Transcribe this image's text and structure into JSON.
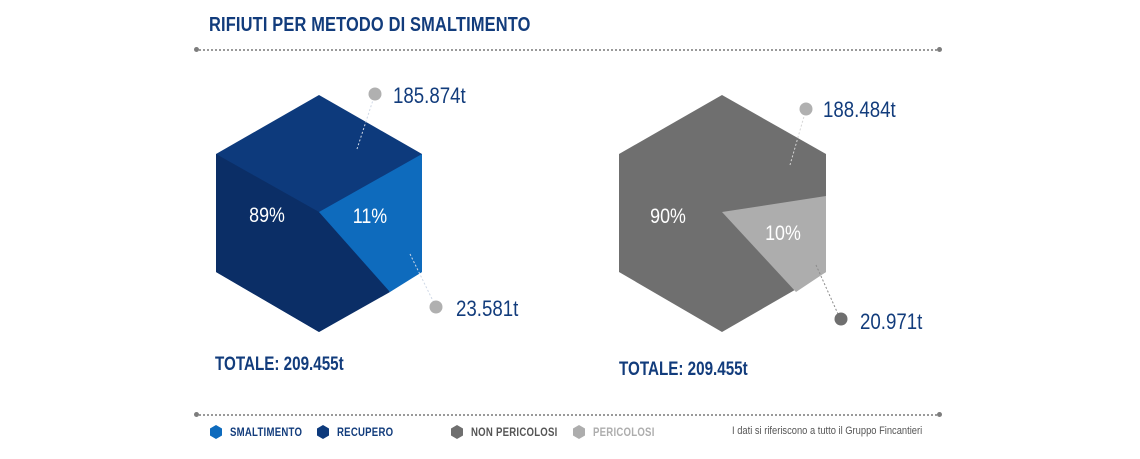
{
  "title": "RIFIUTI PER METODO DI SMALTIMENTO",
  "colors": {
    "smaltimento": "#0e6bbd",
    "recupero": "#0d3a7c",
    "recupero_dark": "#0b2e66",
    "non_pericolosi": "#6f6f6f",
    "pericolosi": "#adadad",
    "brand_text": "#123c7c"
  },
  "chart_data": [
    {
      "type": "pie",
      "shape": "hexagon",
      "slices": [
        {
          "label": "RECUPERO",
          "percent": 89,
          "percent_label": "89%",
          "value_label": "185.874t",
          "value": 185874,
          "unit": "t",
          "color": "#0d3a7c"
        },
        {
          "label": "SMALTIMENTO",
          "percent": 11,
          "percent_label": "11%",
          "value_label": "23.581t",
          "value": 23581,
          "unit": "t",
          "color": "#0e6bbd"
        }
      ],
      "total_label": "TOTALE: 209.455t"
    },
    {
      "type": "pie",
      "shape": "hexagon",
      "slices": [
        {
          "label": "NON PERICOLOSI",
          "percent": 90,
          "percent_label": "90%",
          "value_label": "188.484t",
          "value": 188484,
          "unit": "t",
          "color": "#6f6f6f"
        },
        {
          "label": "PERICOLOSI",
          "percent": 10,
          "percent_label": "10%",
          "value_label": "20.971t",
          "value": 20971,
          "unit": "t",
          "color": "#adadad"
        }
      ],
      "total_label": "TOTALE: 209.455t"
    }
  ],
  "legend": [
    {
      "label": "SMALTIMENTO",
      "color": "#0e6bbd"
    },
    {
      "label": "RECUPERO",
      "color": "#0d3a7c"
    },
    {
      "label": "NON PERICOLOSI",
      "color": "#6f6f6f"
    },
    {
      "label": "PERICOLOSI",
      "color": "#adadad"
    }
  ],
  "note": "I dati si riferiscono a tutto il Gruppo Fincantieri"
}
